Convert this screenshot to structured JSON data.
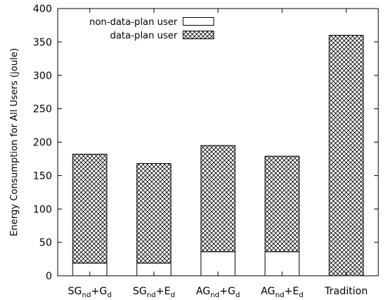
{
  "chart_data": {
    "type": "bar",
    "stacked": true,
    "categories": [
      {
        "base": "SG",
        "sub1": "nd",
        "mid": "+G",
        "sub2": "d"
      },
      {
        "base": "SG",
        "sub1": "nd",
        "mid": "+E",
        "sub2": "d"
      },
      {
        "base": "AG",
        "sub1": "nd",
        "mid": "+G",
        "sub2": "d"
      },
      {
        "base": "AG",
        "sub1": "nd",
        "mid": "+E",
        "sub2": "d"
      },
      {
        "base": "Tradition",
        "sub1": "",
        "mid": "",
        "sub2": ""
      }
    ],
    "series": [
      {
        "name": "non-data-plan user",
        "pattern": "none",
        "values": [
          19,
          19,
          36,
          36,
          0
        ]
      },
      {
        "name": "data-plan user",
        "pattern": "crosshatch",
        "values": [
          163,
          149,
          159,
          143,
          360
        ]
      }
    ],
    "ylabel": "Energy Consumption for All Users (joule)",
    "xlabel": "",
    "ylim": [
      0,
      400
    ],
    "yticks": [
      0,
      50,
      100,
      150,
      200,
      250,
      300,
      350,
      400
    ],
    "legend_position": "top-left",
    "grid": false
  }
}
